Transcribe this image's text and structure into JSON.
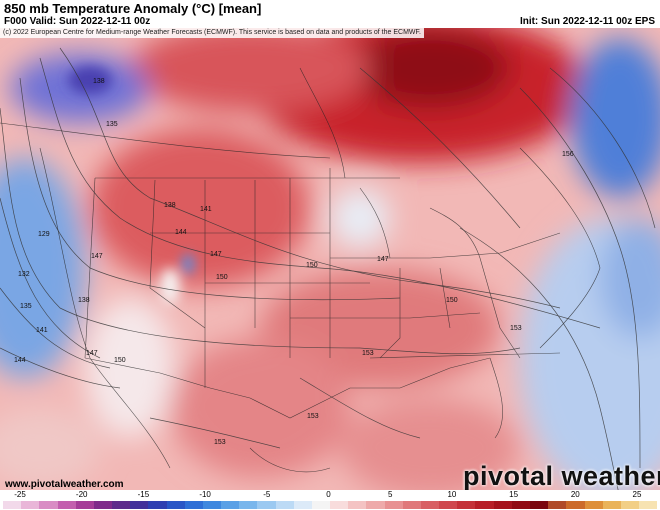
{
  "header": {
    "title": "850 mb Temperature Anomaly (°C) [mean]",
    "valid": "F000 Valid: Sun 2022-12-11 00z",
    "init": "Init: Sun 2022-12-11 00z EPS"
  },
  "map": {
    "credit": "(c) 2022 European Centre for Medium-range Weather Forecasts (ECMWF). This service is based on data and products of the ECMWF.",
    "website": "www.pivotalweather.com",
    "brand": "pivotal weather",
    "contour_labels": [
      "138",
      "135",
      "132",
      "129",
      "135",
      "138",
      "141",
      "144",
      "147",
      "150",
      "147",
      "150",
      "147",
      "153",
      "153",
      "150",
      "153",
      "153",
      "138",
      "141",
      "144",
      "147",
      "150",
      "156"
    ]
  },
  "colorbar": {
    "ticks": [
      "-25",
      "-20",
      "-15",
      "-10",
      "-5",
      "0",
      "5",
      "10",
      "15",
      "20",
      "25"
    ],
    "colors": [
      "#f2d9ea",
      "#e9b6d8",
      "#d98cc4",
      "#c35fae",
      "#a53c98",
      "#7f2a8a",
      "#5e2a8a",
      "#43309a",
      "#2f3fb1",
      "#2a56c6",
      "#2f6fd6",
      "#3f88df",
      "#5aa0e6",
      "#79b6ec",
      "#9bc9f1",
      "#bcdaf5",
      "#dceaf8",
      "#f4f4f4",
      "#f8dcdc",
      "#f4c3c3",
      "#eeaaaa",
      "#e89192",
      "#e0787a",
      "#d85f63",
      "#cf474d",
      "#c43138",
      "#b71e27",
      "#a5121c",
      "#910a13",
      "#7a060d",
      "#b04a28",
      "#cc6a2a",
      "#de8f3a",
      "#eab35a",
      "#f2cf86",
      "#f7e3b2"
    ]
  }
}
